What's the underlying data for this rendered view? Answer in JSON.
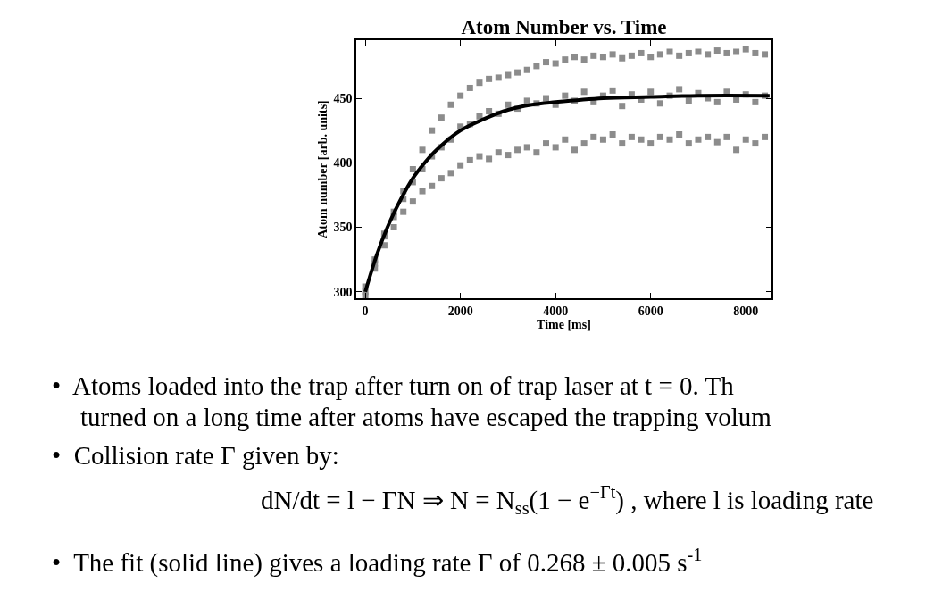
{
  "chart_data": {
    "type": "scatter",
    "title": "Atom Number vs. Time",
    "xlabel": "Time [ms]",
    "ylabel": "Atom number [arb. units]",
    "xlim": [
      -190,
      8540
    ],
    "ylim": [
      295,
      495
    ],
    "xticks": [
      0,
      2000,
      4000,
      6000,
      8000
    ],
    "yticks": [
      300,
      350,
      400,
      450
    ],
    "series": [
      {
        "color": "#8c8c8c",
        "marker": "square",
        "x": [
          0,
          200,
          400,
          600,
          800,
          1000,
          1200,
          1400,
          1600,
          1800,
          2000,
          2200,
          2400,
          2600,
          2800,
          3000,
          3200,
          3400,
          3600,
          3800,
          4000,
          4200,
          4400,
          4600,
          4800,
          5000,
          5200,
          5400,
          5600,
          5800,
          6000,
          6200,
          6400,
          6600,
          6800,
          7000,
          7200,
          7400,
          7600,
          7800,
          8000,
          8200,
          8400,
          0,
          200,
          400,
          600,
          800,
          1000,
          1200,
          1400,
          1600,
          1800,
          2000,
          2200,
          2400,
          2600,
          2800,
          3000,
          3200,
          3400,
          3600,
          3800,
          4000,
          4200,
          4400,
          4600,
          4800,
          5000,
          5200,
          5400,
          5600,
          5800,
          6000,
          6200,
          6400,
          6600,
          6800,
          7000,
          7200,
          7400,
          7600,
          7800,
          8000,
          8200,
          8400,
          0,
          200,
          400,
          600,
          800,
          1000,
          1200,
          1400,
          1600,
          1800,
          2000,
          2200,
          2400,
          2600,
          2800,
          3000,
          3200,
          3400,
          3600,
          3800,
          4000,
          4200,
          4400,
          4600,
          4800,
          5000,
          5200,
          5400,
          5600,
          5800,
          6000,
          6200,
          6400,
          6600,
          6800,
          7000,
          7200,
          7400,
          7600,
          7800,
          8000,
          8200,
          8400
        ],
        "values": [
          304,
          322,
          345,
          362,
          378,
          395,
          410,
          425,
          435,
          445,
          452,
          458,
          462,
          465,
          466,
          468,
          470,
          472,
          475,
          478,
          477,
          480,
          482,
          480,
          483,
          482,
          484,
          481,
          483,
          485,
          482,
          484,
          486,
          483,
          485,
          486,
          484,
          487,
          485,
          486,
          488,
          485,
          484,
          300,
          325,
          343,
          358,
          372,
          385,
          395,
          405,
          412,
          418,
          428,
          430,
          436,
          440,
          438,
          445,
          442,
          448,
          446,
          450,
          445,
          452,
          448,
          455,
          447,
          452,
          456,
          444,
          453,
          449,
          455,
          446,
          452,
          457,
          448,
          454,
          450,
          447,
          455,
          449,
          453,
          447,
          452,
          297,
          318,
          336,
          350,
          362,
          370,
          378,
          382,
          388,
          392,
          398,
          402,
          405,
          403,
          408,
          406,
          410,
          412,
          408,
          415,
          412,
          418,
          410,
          415,
          420,
          418,
          422,
          415,
          420,
          418,
          415,
          420,
          418,
          422,
          415,
          418,
          420,
          416,
          420,
          410,
          418,
          415,
          420
        ]
      },
      {
        "type": "line",
        "color": "#000000",
        "marker": "none",
        "line_style": "solid",
        "x": [
          0,
          250,
          500,
          750,
          1000,
          1250,
          1500,
          2000,
          2500,
          3000,
          3500,
          4000,
          5000,
          6000,
          7000,
          8500
        ],
        "values": [
          300,
          329.5,
          353,
          372,
          388,
          400,
          410,
          425,
          434,
          441,
          445,
          447,
          450,
          451,
          452,
          452
        ]
      }
    ],
    "annotations": [
      "•  Atoms loaded into the trap after turn on of trap laser at t = 0. Th",
      "turned on a long time after atoms have escaped the trapping volum",
      "•  Collision rate Γ given by:",
      "dN/dt = l − ΓN ⇒ N = N$_{ss}$(1 − e$^{−Γt}$) , where l is loading rate",
      "•  The fit (solid line) gives a loading rate Γ of 0.268 ± 0.005 s$^{-1}$"
    ]
  }
}
